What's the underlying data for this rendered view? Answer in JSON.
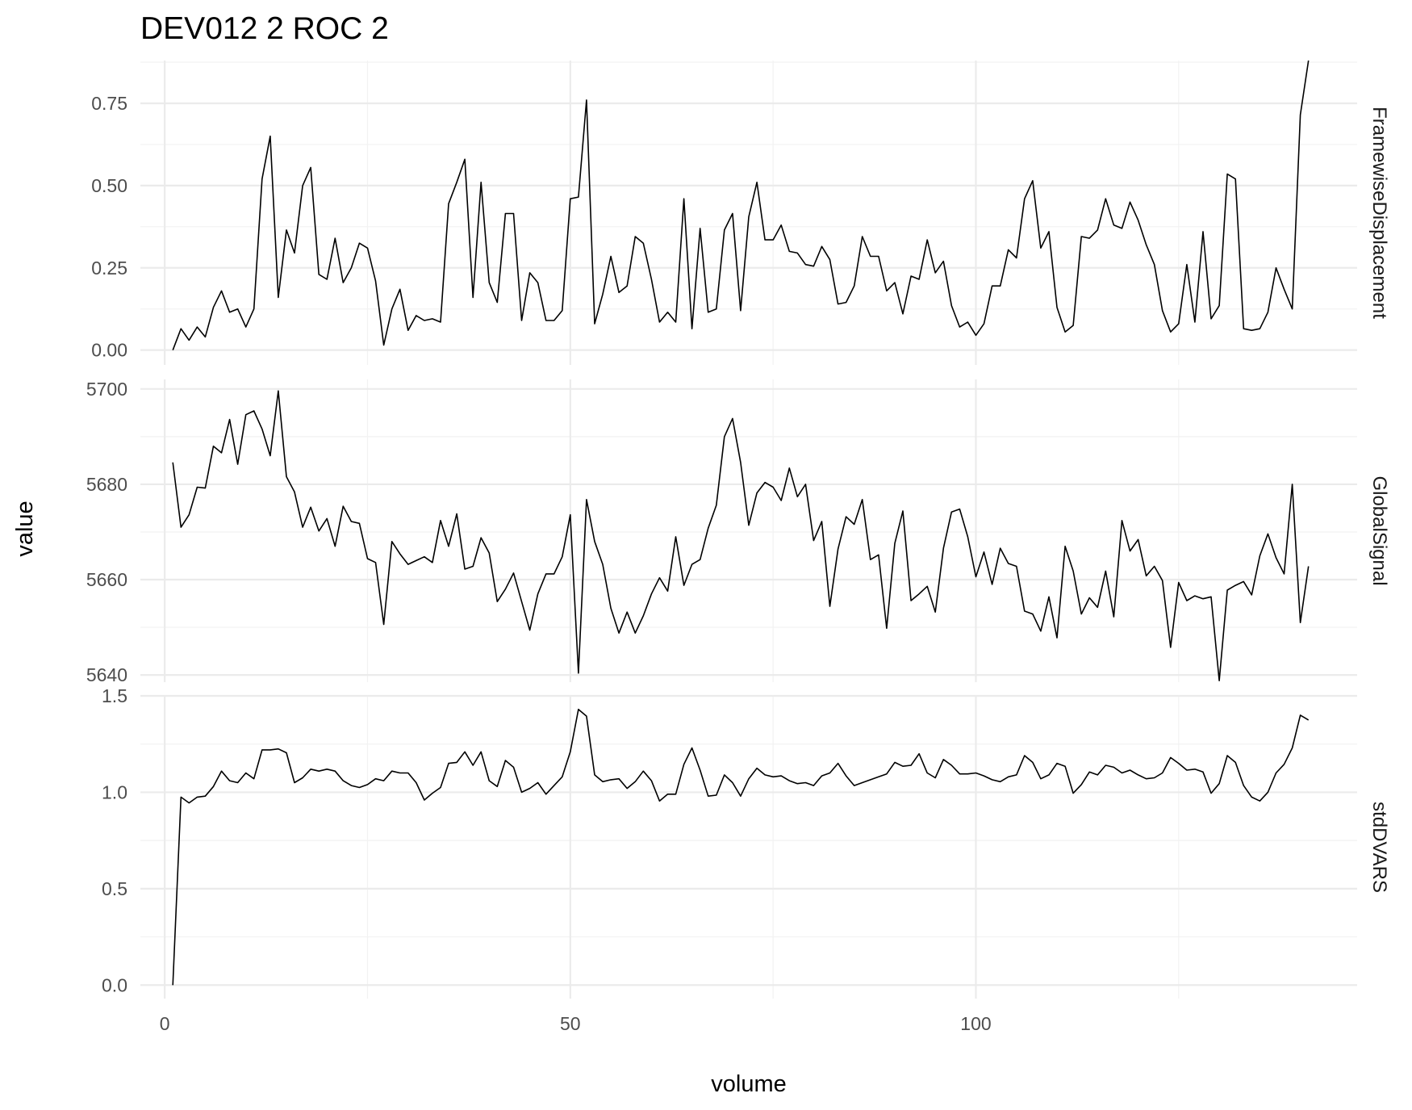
{
  "chart_data": {
    "type": "line",
    "title": "DEV012  2  ROC  2",
    "xlabel": "volume",
    "ylabel": "value",
    "xlim": [
      -3,
      147
    ],
    "x_ticks": [
      0,
      50,
      100
    ],
    "x_tick_labels": [
      "0",
      "50",
      "100"
    ],
    "grid": true,
    "legend": "none",
    "x": [
      1,
      2,
      3,
      4,
      5,
      6,
      7,
      8,
      9,
      10,
      11,
      12,
      13,
      14,
      15,
      16,
      17,
      18,
      19,
      20,
      21,
      22,
      23,
      24,
      25,
      26,
      27,
      28,
      29,
      30,
      31,
      32,
      33,
      34,
      35,
      36,
      37,
      38,
      39,
      40,
      41,
      42,
      43,
      44,
      45,
      46,
      47,
      48,
      49,
      50,
      51,
      52,
      53,
      54,
      55,
      56,
      57,
      58,
      59,
      60,
      61,
      62,
      63,
      64,
      65,
      66,
      67,
      68,
      69,
      70,
      71,
      72,
      73,
      74,
      75,
      76,
      77,
      78,
      79,
      80,
      81,
      82,
      83,
      84,
      85,
      86,
      87,
      88,
      89,
      90,
      91,
      92,
      93,
      94,
      95,
      96,
      97,
      98,
      99,
      100,
      101,
      102,
      103,
      104,
      105,
      106,
      107,
      108,
      109,
      110,
      111,
      112,
      113,
      114,
      115,
      116,
      117,
      118,
      119,
      120,
      121,
      122,
      123,
      124,
      125,
      126,
      127,
      128,
      129,
      130,
      131,
      132,
      133,
      134,
      135,
      136,
      137,
      138,
      139,
      140,
      141,
      142,
      143
    ],
    "panels": [
      {
        "name": "FramewiseDisplacement",
        "ylim": [
          -0.045,
          0.88
        ],
        "y_ticks": [
          0.0,
          0.25,
          0.5,
          0.75
        ],
        "y_tick_labels": [
          "0.00",
          "0.25",
          "0.50",
          "0.75"
        ],
        "values": [
          0.0,
          0.065,
          0.03,
          0.07,
          0.04,
          0.13,
          0.18,
          0.115,
          0.125,
          0.07,
          0.125,
          0.52,
          0.65,
          0.16,
          0.365,
          0.295,
          0.5,
          0.555,
          0.23,
          0.215,
          0.34,
          0.205,
          0.25,
          0.325,
          0.31,
          0.21,
          0.015,
          0.125,
          0.185,
          0.06,
          0.105,
          0.09,
          0.095,
          0.085,
          0.445,
          0.51,
          0.58,
          0.16,
          0.51,
          0.205,
          0.145,
          0.415,
          0.415,
          0.09,
          0.235,
          0.205,
          0.09,
          0.09,
          0.12,
          0.46,
          0.465,
          0.76,
          0.08,
          0.17,
          0.285,
          0.175,
          0.195,
          0.345,
          0.325,
          0.215,
          0.085,
          0.115,
          0.085,
          0.46,
          0.065,
          0.37,
          0.115,
          0.125,
          0.365,
          0.415,
          0.12,
          0.405,
          0.51,
          0.335,
          0.335,
          0.38,
          0.3,
          0.295,
          0.26,
          0.255,
          0.315,
          0.275,
          0.14,
          0.145,
          0.195,
          0.345,
          0.285,
          0.285,
          0.18,
          0.205,
          0.11,
          0.225,
          0.215,
          0.335,
          0.235,
          0.27,
          0.135,
          0.07,
          0.085,
          0.045,
          0.08,
          0.195,
          0.195,
          0.305,
          0.28,
          0.46,
          0.515,
          0.31,
          0.36,
          0.13,
          0.055,
          0.075,
          0.345,
          0.34,
          0.365,
          0.46,
          0.38,
          0.37,
          0.45,
          0.395,
          0.32,
          0.26,
          0.12,
          0.055,
          0.08,
          0.26,
          0.085,
          0.36,
          0.095,
          0.135,
          0.535,
          0.52,
          0.065,
          0.06,
          0.065,
          0.115,
          0.25,
          0.185,
          0.125,
          0.715,
          0.88
        ]
      },
      {
        "name": "GlobalSignal",
        "ylim": [
          5638.5,
          5702.0
        ],
        "y_ticks": [
          5640,
          5660,
          5680,
          5700
        ],
        "y_tick_labels": [
          "5640",
          "5660",
          "5680",
          "5700"
        ],
        "values": [
          5684.6,
          5671.0,
          5673.6,
          5679.4,
          5679.2,
          5688.0,
          5686.6,
          5693.6,
          5684.2,
          5694.6,
          5695.4,
          5691.6,
          5686.0,
          5699.6,
          5681.6,
          5678.4,
          5671.0,
          5675.2,
          5670.2,
          5672.8,
          5667.0,
          5675.4,
          5672.2,
          5671.8,
          5664.4,
          5663.6,
          5650.6,
          5668.0,
          5665.4,
          5663.2,
          5664.0,
          5664.8,
          5663.6,
          5672.4,
          5667.0,
          5673.8,
          5662.2,
          5662.8,
          5668.8,
          5665.6,
          5655.4,
          5658.0,
          5661.4,
          5655.4,
          5649.4,
          5657.0,
          5661.2,
          5661.2,
          5664.8,
          5673.6,
          5640.4,
          5676.8,
          5668.0,
          5663.2,
          5654.0,
          5648.8,
          5653.2,
          5648.8,
          5652.4,
          5657.0,
          5660.4,
          5657.6,
          5669.0,
          5658.8,
          5663.2,
          5664.2,
          5670.8,
          5675.6,
          5690.0,
          5693.8,
          5684.6,
          5671.4,
          5678.2,
          5680.4,
          5679.4,
          5676.6,
          5683.4,
          5677.4,
          5680.0,
          5668.2,
          5672.2,
          5654.4,
          5666.4,
          5673.2,
          5671.6,
          5676.8,
          5664.2,
          5665.2,
          5649.8,
          5667.6,
          5674.4,
          5655.6,
          5657.0,
          5658.6,
          5653.2,
          5666.6,
          5674.2,
          5674.8,
          5669.0,
          5660.6,
          5665.8,
          5659.0,
          5666.6,
          5663.4,
          5662.8,
          5653.4,
          5652.8,
          5649.2,
          5656.4,
          5647.8,
          5667.0,
          5661.8,
          5652.8,
          5656.2,
          5654.2,
          5661.8,
          5652.2,
          5672.4,
          5666.0,
          5668.4,
          5660.8,
          5662.8,
          5659.8,
          5645.8,
          5659.4,
          5655.6,
          5656.6,
          5656.0,
          5656.4,
          5638.8,
          5657.8,
          5658.8,
          5659.6,
          5656.8,
          5665.0,
          5669.6,
          5664.6,
          5661.2,
          5680.0,
          5651.0,
          5662.8
        ]
      },
      {
        "name": "stdDVARS",
        "ylim": [
          -0.07,
          1.5
        ],
        "y_ticks": [
          0.0,
          0.5,
          1.0,
          1.5
        ],
        "y_tick_labels": [
          "0.0",
          "0.5",
          "1.0",
          "1.5"
        ],
        "values": [
          0.0,
          0.975,
          0.945,
          0.975,
          0.98,
          1.03,
          1.11,
          1.06,
          1.05,
          1.1,
          1.07,
          1.22,
          1.22,
          1.225,
          1.205,
          1.05,
          1.075,
          1.12,
          1.11,
          1.12,
          1.11,
          1.06,
          1.035,
          1.025,
          1.04,
          1.07,
          1.06,
          1.11,
          1.1,
          1.1,
          1.05,
          0.96,
          0.995,
          1.025,
          1.15,
          1.155,
          1.21,
          1.14,
          1.21,
          1.06,
          1.03,
          1.165,
          1.13,
          1.0,
          1.02,
          1.05,
          0.99,
          1.035,
          1.08,
          1.21,
          1.43,
          1.395,
          1.09,
          1.055,
          1.065,
          1.07,
          1.02,
          1.055,
          1.11,
          1.06,
          0.955,
          0.99,
          0.99,
          1.145,
          1.23,
          1.115,
          0.98,
          0.985,
          1.09,
          1.05,
          0.98,
          1.07,
          1.125,
          1.09,
          1.08,
          1.085,
          1.06,
          1.045,
          1.05,
          1.035,
          1.085,
          1.1,
          1.15,
          1.085,
          1.035,
          1.05,
          1.065,
          1.08,
          1.095,
          1.155,
          1.135,
          1.14,
          1.2,
          1.1,
          1.075,
          1.17,
          1.14,
          1.095,
          1.095,
          1.1,
          1.085,
          1.065,
          1.055,
          1.08,
          1.09,
          1.19,
          1.155,
          1.07,
          1.09,
          1.15,
          1.135,
          0.995,
          1.04,
          1.105,
          1.09,
          1.14,
          1.13,
          1.1,
          1.115,
          1.09,
          1.07,
          1.075,
          1.1,
          1.18,
          1.15,
          1.115,
          1.12,
          1.105,
          0.995,
          1.045,
          1.19,
          1.155,
          1.035,
          0.975,
          0.955,
          1.0,
          1.1,
          1.145,
          1.23,
          1.4,
          1.375
        ]
      }
    ]
  }
}
